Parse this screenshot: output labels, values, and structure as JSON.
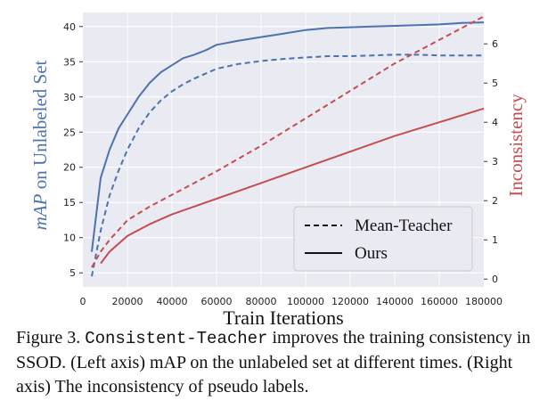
{
  "chart_data": {
    "type": "line",
    "xlabel": "Train Iterations",
    "ylabel_left": "mAP on Unlabeled Set",
    "ylabel_right": "Inconsistency",
    "xlim": [
      0,
      180000
    ],
    "ylim_left": [
      3,
      42
    ],
    "ylim_right": [
      -0.2,
      6.8
    ],
    "x_ticks": [
      "0",
      "20000",
      "40000",
      "60000",
      "80000",
      "100000",
      "120000",
      "140000",
      "160000",
      "180000"
    ],
    "y_left_ticks": [
      "5",
      "10",
      "15",
      "20",
      "25",
      "30",
      "35",
      "40"
    ],
    "y_right_ticks": [
      "0",
      "1",
      "2",
      "3",
      "4",
      "5",
      "6"
    ],
    "grid": true,
    "legend_position": "lower-right",
    "legend": [
      {
        "label": "Mean-Teacher",
        "style": "dashed"
      },
      {
        "label": "Ours",
        "style": "solid"
      }
    ],
    "series": [
      {
        "name": "Ours",
        "axis": "left",
        "style": "solid",
        "color": "#4c72b0",
        "x": [
          4000,
          8000,
          12000,
          16000,
          20000,
          25000,
          30000,
          35000,
          40000,
          45000,
          50000,
          55000,
          60000,
          65000,
          70000,
          80000,
          90000,
          100000,
          110000,
          120000,
          130000,
          140000,
          150000,
          160000,
          170000,
          180000
        ],
        "y": [
          8.0,
          18.5,
          22.5,
          25.5,
          27.5,
          30.0,
          32.0,
          33.5,
          34.5,
          35.5,
          36.0,
          36.6,
          37.4,
          37.7,
          38.0,
          38.5,
          39.0,
          39.5,
          39.8,
          39.9,
          40.0,
          40.1,
          40.2,
          40.3,
          40.5,
          40.6
        ]
      },
      {
        "name": "Mean-Teacher",
        "axis": "left",
        "style": "dashed",
        "color": "#4c72b0",
        "x": [
          4000,
          8000,
          12000,
          16000,
          20000,
          25000,
          30000,
          35000,
          40000,
          45000,
          50000,
          55000,
          60000,
          70000,
          80000,
          90000,
          100000,
          110000,
          120000,
          130000,
          140000,
          150000,
          160000,
          170000,
          180000
        ],
        "y": [
          4.5,
          11.0,
          16.0,
          19.5,
          22.5,
          25.5,
          27.8,
          29.5,
          30.8,
          31.8,
          32.6,
          33.3,
          34.0,
          34.7,
          35.1,
          35.4,
          35.6,
          35.8,
          35.8,
          35.9,
          36.0,
          36.0,
          35.9,
          35.9,
          35.9
        ]
      },
      {
        "name": "Ours",
        "axis": "right",
        "style": "solid",
        "color": "#c44e52",
        "x": [
          8000,
          12000,
          20000,
          30000,
          40000,
          50000,
          60000,
          80000,
          100000,
          120000,
          140000,
          160000,
          180000
        ],
        "y": [
          0.4,
          0.7,
          1.1,
          1.4,
          1.65,
          1.85,
          2.05,
          2.45,
          2.85,
          3.25,
          3.65,
          4.0,
          4.35
        ]
      },
      {
        "name": "Mean-Teacher",
        "axis": "right",
        "style": "dashed",
        "color": "#c44e52",
        "x": [
          4000,
          8000,
          12000,
          20000,
          30000,
          40000,
          50000,
          60000,
          80000,
          100000,
          120000,
          140000,
          160000,
          180000
        ],
        "y": [
          0.3,
          0.7,
          1.0,
          1.5,
          1.85,
          2.15,
          2.45,
          2.75,
          3.4,
          4.1,
          4.8,
          5.5,
          6.1,
          6.7
        ]
      }
    ]
  },
  "caption": {
    "prefix": "Figure 3. ",
    "code": "Consistent-Teacher",
    "text": " improves the training consistency in SSOD. (Left axis) mAP on the unlabeled set at different times. (Right axis) The inconsistency of pseudo labels."
  },
  "colors": {
    "plot_bg": "#eaeaf2",
    "grid": "#ffffff",
    "blue": "#4c72b0",
    "red": "#c44e52"
  }
}
